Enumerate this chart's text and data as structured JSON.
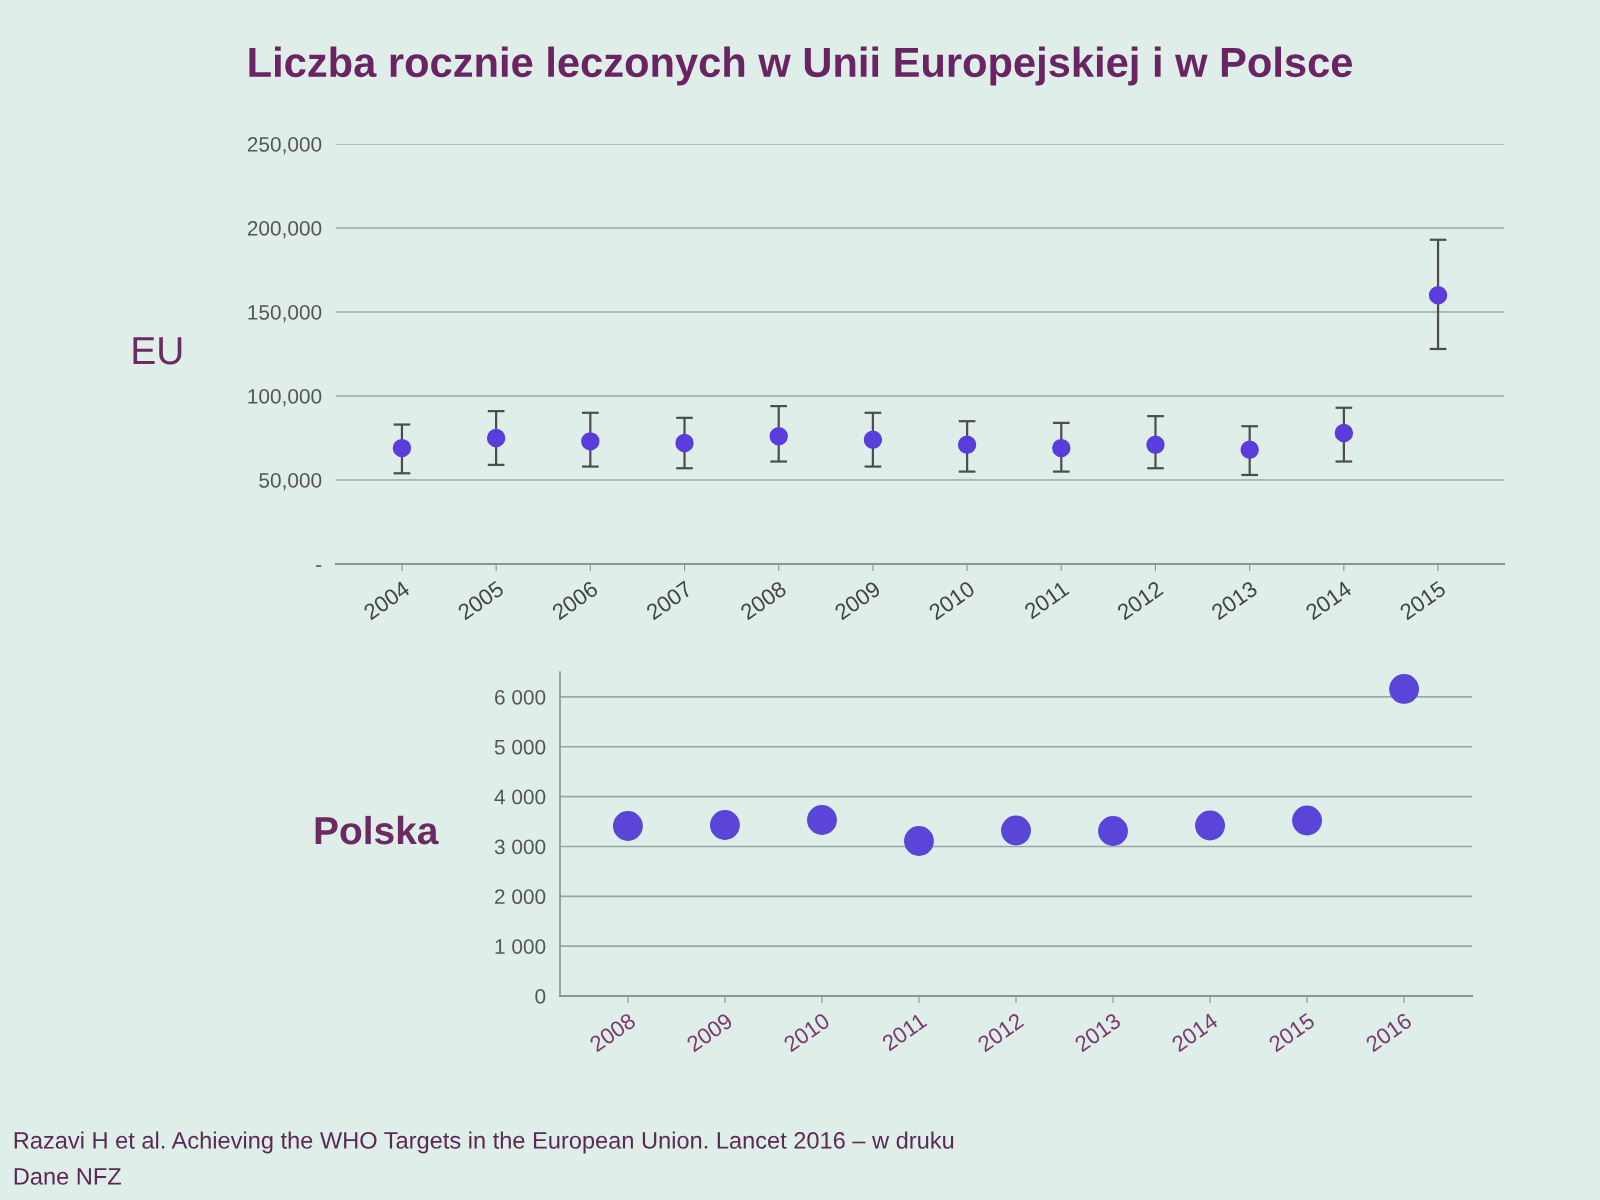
{
  "chart_data": [
    {
      "type": "scatter",
      "title": "Liczba rocznie leczonych w Unii Europejskiej i w Polsce",
      "ylabel": "EU",
      "categories": [
        "2004",
        "2005",
        "2006",
        "2007",
        "2008",
        "2009",
        "2010",
        "2011",
        "2012",
        "2013",
        "2014",
        "2015"
      ],
      "values": [
        69000,
        75000,
        73000,
        72000,
        76000,
        74000,
        71000,
        69000,
        71000,
        68000,
        78000,
        160000
      ],
      "errors": [
        [
          54000,
          83000
        ],
        [
          59000,
          91000
        ],
        [
          58000,
          90000
        ],
        [
          57000,
          87000
        ],
        [
          61000,
          94000
        ],
        [
          58000,
          90000
        ],
        [
          55000,
          85000
        ],
        [
          55000,
          84000
        ],
        [
          57000,
          88000
        ],
        [
          53000,
          82000
        ],
        [
          61000,
          93000
        ],
        [
          128000,
          193000
        ]
      ],
      "color": "#5b3cdc",
      "marker": "circle",
      "grid": "y",
      "ylim": [
        0,
        250000
      ],
      "yticks": [
        {
          "value": 0,
          "label": "-"
        },
        {
          "value": 50000,
          "label": "50,000"
        },
        {
          "value": 100000,
          "label": "100,000"
        },
        {
          "value": 150000,
          "label": "150,000"
        },
        {
          "value": 200000,
          "label": "200,000"
        },
        {
          "value": 250000,
          "label": "250,000"
        }
      ]
    },
    {
      "type": "scatter",
      "ylabel": "Polska",
      "categories": [
        "2008",
        "2009",
        "2010",
        "2011",
        "2012",
        "2013",
        "2014",
        "2015",
        "2016"
      ],
      "values": [
        3410,
        3430,
        3530,
        3110,
        3320,
        3310,
        3420,
        3520,
        6160
      ],
      "color": "#5a45d8",
      "marker": "circle",
      "grid": "y",
      "ylim": [
        0,
        6500
      ],
      "yticks": [
        0,
        {
          "value": 1000,
          "label": "1 000"
        },
        {
          "value": 2000,
          "label": "2 000"
        },
        {
          "value": 3000,
          "label": "3 000"
        },
        {
          "value": 4000,
          "label": "4 000"
        },
        {
          "value": 5000,
          "label": "5 000"
        },
        {
          "value": 6000,
          "label": "6 000"
        }
      ],
      "annotations": [
        "Razavi H et al. Achieving the WHO Targets in the European Union. Lancet 2016 – w druku",
        "Dane NFZ"
      ]
    }
  ]
}
